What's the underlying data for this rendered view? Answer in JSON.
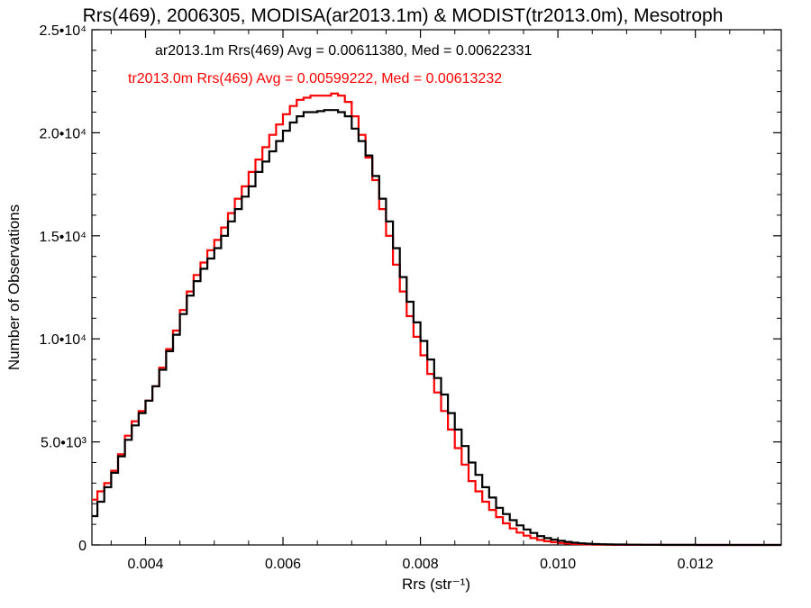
{
  "chart_data": {
    "type": "line",
    "title": "Rrs(469), 2006305, MODISA(ar2013.1m) & MODIST(tr2013.0m), Mesotroph",
    "xlabel": "Rrs (str⁻¹)",
    "ylabel": "Number of Observations",
    "xlim": [
      0.00322,
      0.01325
    ],
    "ylim": [
      0,
      25000
    ],
    "xticks": [
      "0.004",
      "0.006",
      "0.008",
      "0.010",
      "0.012"
    ],
    "xtick_values": [
      0.004,
      0.006,
      0.008,
      0.01,
      0.012
    ],
    "yticks": [
      "0",
      "5.0•10³",
      "1.0•10⁴",
      "1.5•10⁴",
      "2.0•10⁴",
      "2.5•10⁴"
    ],
    "ytick_values": [
      0,
      5000,
      10000,
      15000,
      20000,
      25000
    ],
    "grid": false,
    "legend_position": "top-left",
    "series": [
      {
        "label": "ar2013.1m Rrs(469) Avg = 0.00611380, Med = 0.00622331",
        "color": "#000000",
        "x": [
          0.00322,
          0.0033,
          0.0034,
          0.0035,
          0.0036,
          0.0037,
          0.0038,
          0.0039,
          0.004,
          0.0041,
          0.0042,
          0.0043,
          0.0044,
          0.0045,
          0.0046,
          0.0047,
          0.0048,
          0.0049,
          0.005,
          0.0051,
          0.0052,
          0.0053,
          0.0054,
          0.0055,
          0.0056,
          0.0057,
          0.0058,
          0.0059,
          0.006,
          0.0061,
          0.0062,
          0.0063,
          0.0064,
          0.0065,
          0.0066,
          0.0067,
          0.0068,
          0.0069,
          0.007,
          0.0071,
          0.0072,
          0.0073,
          0.0074,
          0.0075,
          0.0076,
          0.0077,
          0.0078,
          0.0079,
          0.008,
          0.0081,
          0.0082,
          0.0083,
          0.0084,
          0.0085,
          0.0086,
          0.0087,
          0.0088,
          0.0089,
          0.009,
          0.0091,
          0.0092,
          0.0093,
          0.0094,
          0.0095,
          0.0096,
          0.0097,
          0.0098,
          0.0099,
          0.01,
          0.0101,
          0.0102,
          0.0103,
          0.0104,
          0.0105,
          0.0106,
          0.0107,
          0.0108,
          0.011,
          0.0112,
          0.0115,
          0.012,
          0.0125,
          0.013,
          0.01325
        ],
        "values": [
          1400,
          2100,
          2800,
          3500,
          4300,
          5100,
          5800,
          6400,
          7000,
          7700,
          8500,
          9400,
          10200,
          11200,
          12100,
          12800,
          13400,
          13900,
          14400,
          15000,
          15700,
          16300,
          16900,
          17400,
          18100,
          18600,
          19100,
          19600,
          20100,
          20500,
          20800,
          21000,
          21000,
          21050,
          21100,
          21100,
          21000,
          20800,
          20200,
          19600,
          18900,
          17900,
          16800,
          15700,
          14400,
          13000,
          11800,
          10800,
          9900,
          9000,
          8100,
          7300,
          6400,
          5600,
          4800,
          4000,
          3400,
          2800,
          2300,
          1800,
          1500,
          1200,
          950,
          750,
          580,
          430,
          330,
          260,
          200,
          150,
          110,
          80,
          60,
          45,
          35,
          25,
          20,
          12,
          8,
          5,
          2,
          1,
          0,
          0
        ]
      },
      {
        "label": "tr2013.0m Rrs(469) Avg = 0.00599222, Med = 0.00613232",
        "color": "#ff0000",
        "x": [
          0.00322,
          0.0033,
          0.0034,
          0.0035,
          0.0036,
          0.0037,
          0.0038,
          0.0039,
          0.004,
          0.0041,
          0.0042,
          0.0043,
          0.0044,
          0.0045,
          0.0046,
          0.0047,
          0.0048,
          0.0049,
          0.005,
          0.0051,
          0.0052,
          0.0053,
          0.0054,
          0.0055,
          0.0056,
          0.0057,
          0.0058,
          0.0059,
          0.006,
          0.0061,
          0.0062,
          0.0063,
          0.0064,
          0.0065,
          0.0066,
          0.0067,
          0.0068,
          0.0069,
          0.007,
          0.0071,
          0.0072,
          0.0073,
          0.0074,
          0.0075,
          0.0076,
          0.0077,
          0.0078,
          0.0079,
          0.008,
          0.0081,
          0.0082,
          0.0083,
          0.0084,
          0.0085,
          0.0086,
          0.0087,
          0.0088,
          0.0089,
          0.009,
          0.0091,
          0.0092,
          0.0093,
          0.0094,
          0.0095,
          0.0096,
          0.0097,
          0.0098,
          0.0099,
          0.01,
          0.0101,
          0.0102,
          0.0103,
          0.0104,
          0.0105,
          0.0106,
          0.0107,
          0.0108,
          0.011,
          0.0112,
          0.0115,
          0.012,
          0.0125,
          0.013,
          0.01325
        ],
        "values": [
          2200,
          2600,
          3000,
          3600,
          4400,
          5300,
          6000,
          6500,
          7000,
          7700,
          8600,
          9500,
          10400,
          11400,
          12300,
          13100,
          13700,
          14300,
          14800,
          15400,
          16100,
          16800,
          17400,
          18100,
          18700,
          19300,
          19900,
          20400,
          20900,
          21300,
          21600,
          21700,
          21800,
          21800,
          21800,
          21900,
          21800,
          21500,
          20800,
          19900,
          18800,
          17700,
          16300,
          15000,
          13600,
          12300,
          11100,
          10100,
          9200,
          8300,
          7400,
          6500,
          5600,
          4700,
          3900,
          3100,
          2600,
          2100,
          1700,
          1350,
          1050,
          800,
          600,
          450,
          330,
          240,
          180,
          130,
          95,
          70,
          50,
          35,
          25,
          18,
          12,
          8,
          6,
          4,
          3,
          2,
          1,
          0,
          0,
          0
        ]
      }
    ]
  }
}
